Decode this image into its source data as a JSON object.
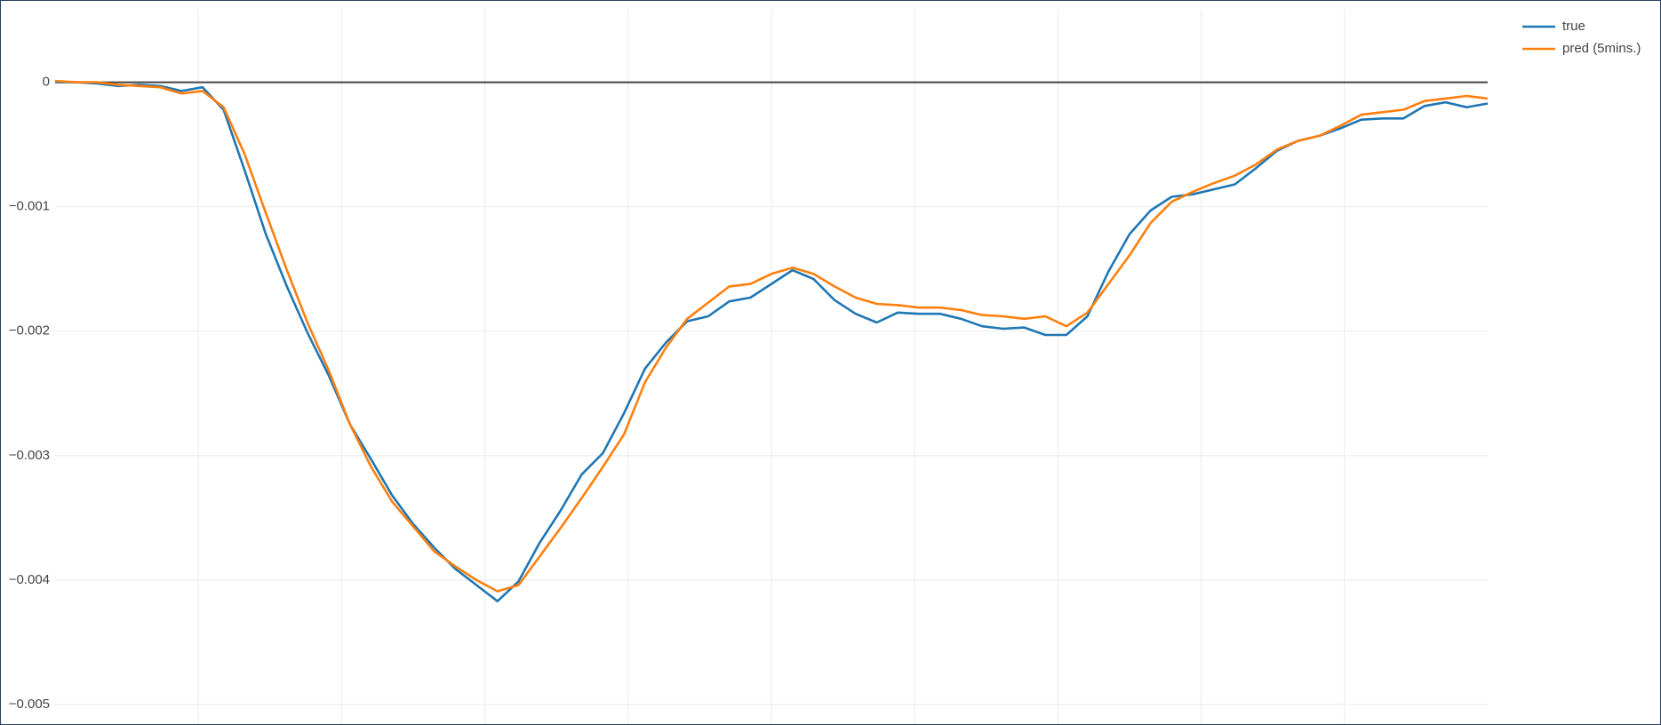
{
  "chart_data": {
    "type": "line",
    "series": [
      {
        "name": "true",
        "color": "#1f77b4",
        "values": [
          0,
          0,
          -1e-05,
          -3e-05,
          -2e-05,
          -3e-05,
          -7e-05,
          -4e-05,
          -0.00022,
          -0.00071,
          -0.00122,
          -0.00164,
          -0.00202,
          -0.00236,
          -0.00275,
          -0.00303,
          -0.00332,
          -0.00355,
          -0.00374,
          -0.00391,
          -0.00404,
          -0.00417,
          -0.00401,
          -0.0037,
          -0.00344,
          -0.00315,
          -0.00298,
          -0.00266,
          -0.0023,
          -0.00209,
          -0.00192,
          -0.00188,
          -0.00176,
          -0.00173,
          -0.00162,
          -0.00151,
          -0.00158,
          -0.00175,
          -0.00186,
          -0.00193,
          -0.00185,
          -0.00186,
          -0.00186,
          -0.0019,
          -0.00196,
          -0.00198,
          -0.00197,
          -0.00203,
          -0.00203,
          -0.00188,
          -0.00152,
          -0.00122,
          -0.00103,
          -0.00092,
          -0.0009,
          -0.00086,
          -0.00082,
          -0.00069,
          -0.00055,
          -0.00047,
          -0.00043,
          -0.00037,
          -0.0003,
          -0.00029,
          -0.00029,
          -0.00019,
          -0.00016,
          -0.0002,
          -0.00017
        ]
      },
      {
        "name": "pred (5mins.)",
        "color": "#ff7f0e",
        "values": [
          1e-05,
          0,
          0,
          -2e-05,
          -3e-05,
          -4e-05,
          -9e-05,
          -7e-05,
          -0.0002,
          -0.00058,
          -0.00105,
          -0.00151,
          -0.00194,
          -0.00232,
          -0.00275,
          -0.00309,
          -0.00337,
          -0.00357,
          -0.00377,
          -0.00389,
          -0.004,
          -0.00409,
          -0.00404,
          -0.00381,
          -0.00358,
          -0.00334,
          -0.00309,
          -0.00283,
          -0.00241,
          -0.00213,
          -0.0019,
          -0.00177,
          -0.00164,
          -0.00162,
          -0.00154,
          -0.00149,
          -0.00154,
          -0.00164,
          -0.00173,
          -0.00178,
          -0.00179,
          -0.00181,
          -0.00181,
          -0.00183,
          -0.00187,
          -0.00188,
          -0.0019,
          -0.00188,
          -0.00196,
          -0.00185,
          -0.00162,
          -0.00139,
          -0.00113,
          -0.00096,
          -0.00088,
          -0.00081,
          -0.00075,
          -0.00066,
          -0.00054,
          -0.00047,
          -0.00043,
          -0.00035,
          -0.00026,
          -0.00024,
          -0.00022,
          -0.00015,
          -0.00013,
          -0.00011,
          -0.00013
        ]
      }
    ],
    "ylim": [
      -0.00515,
      0.00059
    ],
    "yticks": [
      0,
      {
        "value": -0.001,
        "label": "−0.001"
      },
      {
        "value": -0.002,
        "label": "−0.002"
      },
      {
        "value": -0.003,
        "label": "−0.003"
      },
      {
        "value": -0.004,
        "label": "−0.004"
      },
      {
        "value": -0.005,
        "label": "−0.005"
      }
    ],
    "grid": true,
    "legend": "right"
  }
}
